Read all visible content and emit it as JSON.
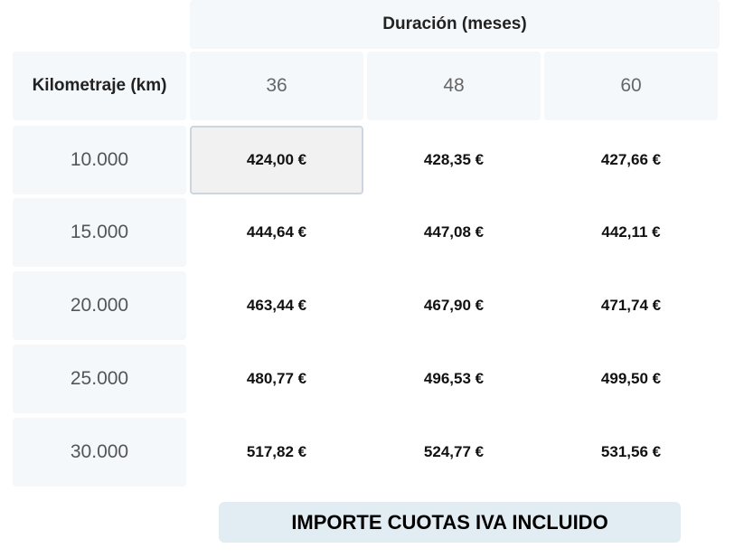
{
  "table": {
    "duration_header": "Duración (meses)",
    "km_header": "Kilometraje (km)",
    "durations": [
      "36",
      "48",
      "60"
    ],
    "rows": [
      {
        "km": "10.000",
        "prices": [
          "424,00 €",
          "428,35 €",
          "427,66 €"
        ]
      },
      {
        "km": "15.000",
        "prices": [
          "444,64 €",
          "447,08 €",
          "442,11 €"
        ]
      },
      {
        "km": "20.000",
        "prices": [
          "463,44 €",
          "467,90 €",
          "471,74 €"
        ]
      },
      {
        "km": "25.000",
        "prices": [
          "480,77 €",
          "496,53 €",
          "499,50 €"
        ]
      },
      {
        "km": "30.000",
        "prices": [
          "517,82 €",
          "524,77 €",
          "531,56 €"
        ]
      }
    ],
    "selected": {
      "row": 0,
      "col": 0
    }
  },
  "footer": {
    "label": "IMPORTE CUOTAS IVA INCLUIDO"
  }
}
